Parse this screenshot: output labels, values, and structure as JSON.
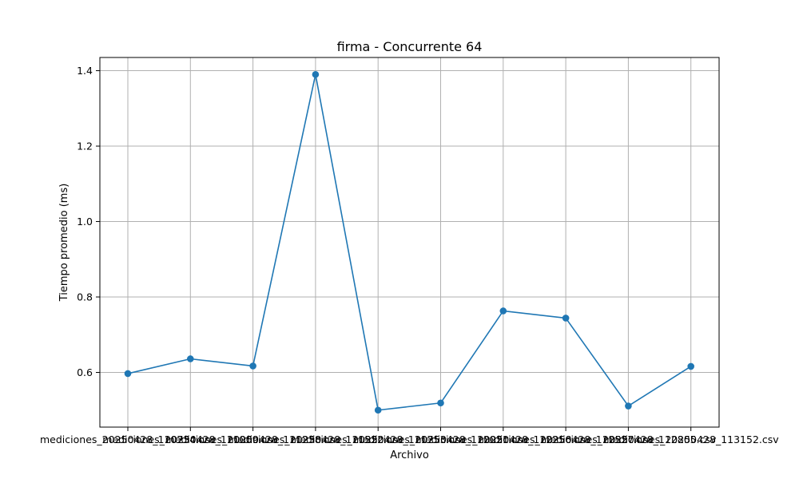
{
  "chart_data": {
    "type": "line",
    "title": "firma - Concurrente 64",
    "xlabel": "Archivo",
    "ylabel": "Tiempo promedio (ms)",
    "categories": [
      "mediciones_20250428_110734.csv",
      "mediciones_20250428_111009.csv",
      "mediciones_20250428_111238.csv",
      "mediciones_20250428_111522.csv",
      "mediciones_20250428_111753.csv",
      "mediciones_20250428_112021.csv",
      "mediciones_20250428_112256.csv",
      "mediciones_20250428_112527.csv",
      "mediciones_20250428_112805.csv",
      "mediciones_20250428_113152.csv"
    ],
    "series": [
      {
        "values": [
          0.597,
          0.636,
          0.617,
          1.39,
          0.5,
          0.519,
          0.763,
          0.744,
          0.511,
          0.616
        ],
        "color": "#1f77b4"
      }
    ],
    "yticks": [
      0.6,
      0.8,
      1.0,
      1.2,
      1.4
    ],
    "ytick_labels": [
      "0.6",
      "0.8",
      "1.0",
      "1.2",
      "1.4"
    ],
    "ylim": [
      0.455,
      1.435
    ],
    "grid": true,
    "legend": "none"
  }
}
